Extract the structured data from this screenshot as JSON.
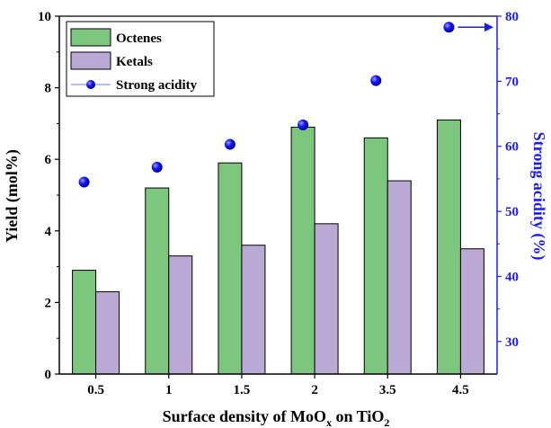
{
  "chart_data": {
    "type": "bar",
    "categories": [
      "0.5",
      "1",
      "1.5",
      "2",
      "3.5",
      "4.5"
    ],
    "series": [
      {
        "name": "Octenes",
        "kind": "bar",
        "axis": "left",
        "color": "#7dc67e",
        "values": [
          2.9,
          5.2,
          5.9,
          6.9,
          6.6,
          7.1
        ]
      },
      {
        "name": "Ketals",
        "kind": "bar",
        "axis": "left",
        "color": "#b9a9d4",
        "values": [
          2.3,
          3.3,
          3.6,
          4.2,
          5.4,
          3.5
        ]
      },
      {
        "name": "Strong acidity",
        "kind": "scatter",
        "axis": "right",
        "color": "#1a1aff",
        "values": [
          54.5,
          56.8,
          60.3,
          63.3,
          70.1,
          78.3
        ]
      }
    ],
    "xlabel": {
      "pre": "Surface density of MoO",
      "sub1": "x",
      "mid": " on TiO",
      "sub2": "2"
    },
    "ylabel": "Yield (mol%)",
    "y2label": "Strong acidity (%)",
    "ylim": [
      0,
      10
    ],
    "y2lim": [
      25,
      80
    ],
    "yticks": [
      "0",
      "2",
      "4",
      "6",
      "8",
      "10"
    ],
    "y2ticks": [
      "30",
      "40",
      "50",
      "60",
      "70",
      "80"
    ],
    "legend_position": "top-left",
    "right_axis_color": "#1a1aff"
  }
}
